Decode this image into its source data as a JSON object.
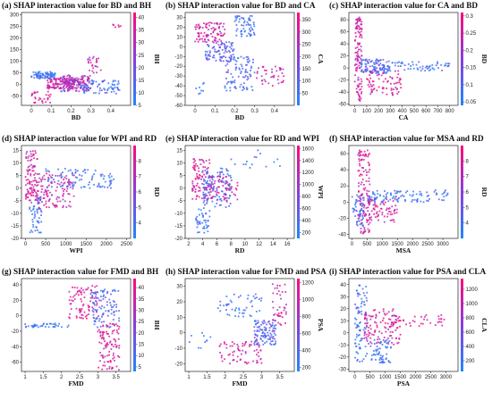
{
  "colors": {
    "low": "#1e88ff",
    "high": "#ff0a7a",
    "point_opacity": 0.85
  },
  "chart_data": [
    {
      "type": "scatter",
      "id": "a",
      "title": "(a) SHAP interaction value for BD and BH",
      "xlabel": "BD",
      "ylabel": "",
      "colorbar_label": "BH",
      "xlim": [
        -0.05,
        0.5
      ],
      "ylim": [
        -90,
        310
      ],
      "xticks": [
        0.0,
        0.1,
        0.2,
        0.3,
        0.4
      ],
      "yticks": [
        -50,
        0,
        50,
        100,
        150,
        200,
        250,
        300
      ],
      "colorbar_range": [
        5,
        42
      ],
      "colorbar_ticks": [
        5,
        10,
        15,
        20,
        25,
        30,
        35,
        40
      ],
      "pattern": "fan",
      "clusters": [
        {
          "x": [
            0.0,
            0.12
          ],
          "y": [
            25,
            55
          ],
          "c": [
            0.0,
            0.25
          ],
          "n": 80
        },
        {
          "x": [
            0.08,
            0.22
          ],
          "y": [
            -20,
            30
          ],
          "c": [
            0.6,
            1.0
          ],
          "n": 120
        },
        {
          "x": [
            0.15,
            0.3
          ],
          "y": [
            -30,
            40
          ],
          "c": [
            0.3,
            0.9
          ],
          "n": 140
        },
        {
          "x": [
            0.25,
            0.45
          ],
          "y": [
            -40,
            20
          ],
          "c": [
            0.0,
            0.4
          ],
          "n": 70
        },
        {
          "x": [
            0.0,
            0.1
          ],
          "y": [
            -80,
            -30
          ],
          "c": [
            0.7,
            1.0
          ],
          "n": 30
        },
        {
          "x": [
            0.28,
            0.35
          ],
          "y": [
            50,
            120
          ],
          "c": [
            0.5,
            1.0
          ],
          "n": 25
        },
        {
          "x": [
            0.4,
            0.45
          ],
          "y": [
            240,
            260
          ],
          "c": [
            0.8,
            1.0
          ],
          "n": 6
        }
      ]
    },
    {
      "type": "scatter",
      "id": "b",
      "title": "(b) SHAP interaction value for BD and CA",
      "xlabel": "BD",
      "ylabel": "",
      "colorbar_label": "CA",
      "xlim": [
        -0.05,
        0.5
      ],
      "ylim": [
        -60,
        35
      ],
      "xticks": [
        0.0,
        0.1,
        0.2,
        0.3,
        0.4
      ],
      "yticks": [
        -60,
        -50,
        -40,
        -30,
        -20,
        -10,
        0,
        10,
        20,
        30
      ],
      "colorbar_range": [
        0,
        380
      ],
      "colorbar_ticks": [
        50,
        100,
        150,
        200,
        250,
        300,
        350
      ],
      "pattern": "fan",
      "clusters": [
        {
          "x": [
            0.0,
            0.15
          ],
          "y": [
            5,
            25
          ],
          "c": [
            0.6,
            1.0
          ],
          "n": 90
        },
        {
          "x": [
            0.05,
            0.2
          ],
          "y": [
            -15,
            5
          ],
          "c": [
            0.1,
            0.5
          ],
          "n": 90
        },
        {
          "x": [
            0.15,
            0.3
          ],
          "y": [
            -45,
            -10
          ],
          "c": [
            0.0,
            0.4
          ],
          "n": 90
        },
        {
          "x": [
            0.2,
            0.3
          ],
          "y": [
            10,
            32
          ],
          "c": [
            0.0,
            0.3
          ],
          "n": 60
        },
        {
          "x": [
            0.3,
            0.45
          ],
          "y": [
            -40,
            -20
          ],
          "c": [
            0.5,
            1.0
          ],
          "n": 40
        },
        {
          "x": [
            0.0,
            0.05
          ],
          "y": [
            -55,
            -35
          ],
          "c": [
            0.0,
            0.3
          ],
          "n": 8
        }
      ]
    },
    {
      "type": "scatter",
      "id": "c",
      "title": "(c) SHAP interaction value for CA and BD",
      "xlabel": "CA",
      "ylabel": "",
      "colorbar_label": "BD",
      "xlim": [
        -50,
        870
      ],
      "ylim": [
        -62,
        92
      ],
      "xticks": [
        0,
        100,
        200,
        300,
        400,
        500,
        600,
        700,
        800
      ],
      "yticks": [
        -60,
        -40,
        -20,
        0,
        20,
        40,
        60,
        80
      ],
      "colorbar_range": [
        0.04,
        0.31
      ],
      "colorbar_ticks": [
        0.05,
        0.1,
        0.15,
        0.2,
        0.25,
        0.3
      ],
      "pattern": "spike",
      "clusters": [
        {
          "x": [
            0,
            60
          ],
          "y": [
            -55,
            85
          ],
          "c": [
            0.6,
            1.0
          ],
          "n": 120
        },
        {
          "x": [
            50,
            300
          ],
          "y": [
            -10,
            15
          ],
          "c": [
            0.0,
            0.5
          ],
          "n": 110
        },
        {
          "x": [
            100,
            400
          ],
          "y": [
            -45,
            -5
          ],
          "c": [
            0.6,
            1.0
          ],
          "n": 70
        },
        {
          "x": [
            250,
            800
          ],
          "y": [
            -5,
            10
          ],
          "c": [
            0.0,
            0.3
          ],
          "n": 60
        }
      ]
    },
    {
      "type": "scatter",
      "id": "d",
      "title": "(d) SHAP interaction value for WPI and RD",
      "xlabel": "WPI",
      "ylabel": "",
      "colorbar_label": "RD",
      "xlim": [
        -100,
        2600
      ],
      "ylim": [
        -20,
        17
      ],
      "xticks": [
        0,
        500,
        1000,
        1500,
        2000,
        2500
      ],
      "yticks": [
        -20,
        -15,
        -10,
        -5,
        0,
        5,
        10,
        15
      ],
      "colorbar_range": [
        3,
        9
      ],
      "colorbar_ticks": [
        4,
        5,
        6,
        7,
        8
      ],
      "pattern": "spike",
      "clusters": [
        {
          "x": [
            0,
            300
          ],
          "y": [
            -5,
            15
          ],
          "c": [
            0.6,
            1.0
          ],
          "n": 100
        },
        {
          "x": [
            100,
            400
          ],
          "y": [
            -18,
            -3
          ],
          "c": [
            0.0,
            0.3
          ],
          "n": 50
        },
        {
          "x": [
            300,
            1200
          ],
          "y": [
            -8,
            6
          ],
          "c": [
            0.5,
            1.0
          ],
          "n": 120
        },
        {
          "x": [
            500,
            2200
          ],
          "y": [
            0,
            8
          ],
          "c": [
            0.0,
            0.3
          ],
          "n": 90
        }
      ]
    },
    {
      "type": "scatter",
      "id": "e",
      "title": "(e) SHAP interaction value for RD and WPI",
      "xlabel": "RD",
      "ylabel": "",
      "colorbar_label": "WPI",
      "xlim": [
        1.5,
        17
      ],
      "ylim": [
        -20,
        17
      ],
      "xticks": [
        2,
        4,
        6,
        8,
        10,
        12,
        14,
        16
      ],
      "yticks": [
        -20,
        -15,
        -10,
        -5,
        0,
        5,
        10,
        15
      ],
      "colorbar_range": [
        100,
        1650
      ],
      "colorbar_ticks": [
        200,
        400,
        600,
        800,
        1000,
        1200,
        1400,
        1600
      ],
      "pattern": "fan",
      "clusters": [
        {
          "x": [
            2.5,
            5
          ],
          "y": [
            -5,
            12
          ],
          "c": [
            0.6,
            1.0
          ],
          "n": 90
        },
        {
          "x": [
            3,
            5
          ],
          "y": [
            -18,
            -8
          ],
          "c": [
            0.0,
            0.3
          ],
          "n": 40
        },
        {
          "x": [
            4,
            8
          ],
          "y": [
            -8,
            8
          ],
          "c": [
            0.0,
            0.4
          ],
          "n": 120
        },
        {
          "x": [
            5,
            9
          ],
          "y": [
            -5,
            5
          ],
          "c": [
            0.6,
            1.0
          ],
          "n": 60
        },
        {
          "x": [
            8,
            15
          ],
          "y": [
            8,
            16
          ],
          "c": [
            0.0,
            0.3
          ],
          "n": 15
        }
      ]
    },
    {
      "type": "scatter",
      "id": "f",
      "title": "(f) SHAP interaction value for MSA and RD",
      "xlabel": "MSA",
      "ylabel": "",
      "colorbar_label": "RD",
      "xlim": [
        -100,
        3500
      ],
      "ylim": [
        -45,
        70
      ],
      "xticks": [
        0,
        500,
        1000,
        1500,
        2000,
        2500,
        3000
      ],
      "yticks": [
        -40,
        -20,
        0,
        20,
        40,
        60
      ],
      "colorbar_range": [
        3,
        9
      ],
      "colorbar_ticks": [
        4,
        5,
        6,
        7,
        8
      ],
      "pattern": "spike",
      "clusters": [
        {
          "x": [
            200,
            600
          ],
          "y": [
            -40,
            65
          ],
          "c": [
            0.6,
            1.0
          ],
          "n": 130
        },
        {
          "x": [
            0,
            400
          ],
          "y": [
            -30,
            10
          ],
          "c": [
            0.0,
            0.3
          ],
          "n": 50
        },
        {
          "x": [
            500,
            1500
          ],
          "y": [
            -25,
            5
          ],
          "c": [
            0.6,
            1.0
          ],
          "n": 70
        },
        {
          "x": [
            500,
            3200
          ],
          "y": [
            0,
            15
          ],
          "c": [
            0.0,
            0.3
          ],
          "n": 100
        }
      ]
    },
    {
      "type": "scatter",
      "id": "g",
      "title": "(g) SHAP interaction value for FMD and BH",
      "xlabel": "FMD",
      "ylabel": "",
      "colorbar_label": "BH",
      "xlim": [
        0.9,
        3.9
      ],
      "ylim": [
        -72,
        48
      ],
      "xticks": [
        1.0,
        1.5,
        2.0,
        2.5,
        3.0,
        3.5
      ],
      "yticks": [
        -60,
        -40,
        -20,
        0,
        20,
        40
      ],
      "colorbar_range": [
        3,
        44
      ],
      "colorbar_ticks": [
        5,
        10,
        15,
        20,
        25,
        30,
        35,
        40
      ],
      "pattern": "fan",
      "clusters": [
        {
          "x": [
            1.0,
            2.2
          ],
          "y": [
            -15,
            -10
          ],
          "c": [
            0.0,
            0.3
          ],
          "n": 40
        },
        {
          "x": [
            2.2,
            3.0
          ],
          "y": [
            -5,
            40
          ],
          "c": [
            0.7,
            1.0
          ],
          "n": 80
        },
        {
          "x": [
            2.8,
            3.6
          ],
          "y": [
            -15,
            35
          ],
          "c": [
            0.0,
            0.5
          ],
          "n": 100
        },
        {
          "x": [
            3.0,
            3.6
          ],
          "y": [
            -70,
            -10
          ],
          "c": [
            0.6,
            1.0
          ],
          "n": 100
        }
      ]
    },
    {
      "type": "scatter",
      "id": "h",
      "title": "(h) SHAP interaction value for FMD and PSA",
      "xlabel": "FMD",
      "ylabel": "",
      "colorbar_label": "PSA",
      "xlim": [
        0.9,
        3.9
      ],
      "ylim": [
        -25,
        35
      ],
      "xticks": [
        1.0,
        1.5,
        2.0,
        2.5,
        3.0,
        3.5
      ],
      "yticks": [
        -20,
        -10,
        0,
        10,
        20,
        30
      ],
      "colorbar_range": [
        150,
        1250
      ],
      "colorbar_ticks": [
        200,
        400,
        600,
        800,
        1000,
        1200
      ],
      "pattern": "fan",
      "clusters": [
        {
          "x": [
            1.8,
            3.0
          ],
          "y": [
            10,
            25
          ],
          "c": [
            0.0,
            0.3
          ],
          "n": 50
        },
        {
          "x": [
            1.8,
            3.0
          ],
          "y": [
            -20,
            -5
          ],
          "c": [
            0.6,
            1.0
          ],
          "n": 70
        },
        {
          "x": [
            2.8,
            3.4
          ],
          "y": [
            -8,
            8
          ],
          "c": [
            0.0,
            0.5
          ],
          "n": 110
        },
        {
          "x": [
            3.3,
            3.7
          ],
          "y": [
            5,
            32
          ],
          "c": [
            0.6,
            1.0
          ],
          "n": 40
        },
        {
          "x": [
            1.0,
            1.6
          ],
          "y": [
            -10,
            0
          ],
          "c": [
            0.0,
            0.3
          ],
          "n": 10
        }
      ]
    },
    {
      "type": "scatter",
      "id": "i",
      "title": "(i) SHAP interaction value for PSA and CLA",
      "xlabel": "PSA",
      "ylabel": "",
      "colorbar_label": "CLA",
      "xlim": [
        -200,
        3400
      ],
      "ylim": [
        -32,
        45
      ],
      "xticks": [
        0,
        500,
        1000,
        1500,
        2000,
        2500,
        3000
      ],
      "yticks": [
        -30,
        -20,
        -10,
        0,
        10,
        20,
        30,
        40
      ],
      "colorbar_range": [
        50,
        1350
      ],
      "colorbar_ticks": [
        200,
        400,
        600,
        800,
        1000,
        1200
      ],
      "pattern": "spike",
      "clusters": [
        {
          "x": [
            0,
            400
          ],
          "y": [
            -25,
            40
          ],
          "c": [
            0.0,
            0.3
          ],
          "n": 90
        },
        {
          "x": [
            300,
            1500
          ],
          "y": [
            -10,
            20
          ],
          "c": [
            0.6,
            1.0
          ],
          "n": 110
        },
        {
          "x": [
            500,
            1200
          ],
          "y": [
            -25,
            -5
          ],
          "c": [
            0.0,
            0.3
          ],
          "n": 60
        },
        {
          "x": [
            1200,
            3000
          ],
          "y": [
            5,
            15
          ],
          "c": [
            0.6,
            1.0
          ],
          "n": 40
        }
      ]
    }
  ]
}
